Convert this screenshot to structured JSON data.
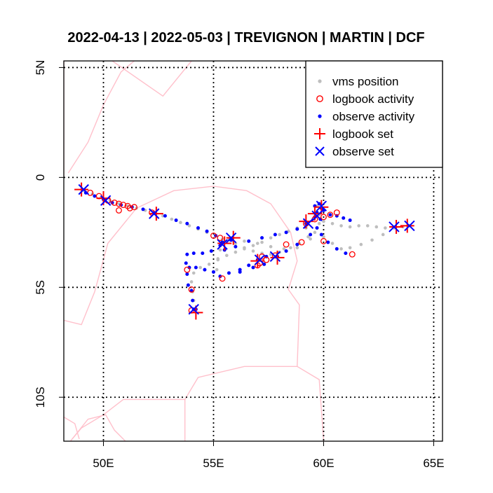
{
  "chart_data": {
    "type": "scatter",
    "title": "2022-04-13 | 2022-05-03 | TREVIGNON | MARTIN | DCF",
    "xlabel": "",
    "ylabel": "",
    "xlim": [
      48.2,
      65.4
    ],
    "ylim": [
      -12.0,
      5.3
    ],
    "grid": true,
    "legend_position": "top-right",
    "x_ticks": [
      {
        "value": 50,
        "label": "50E"
      },
      {
        "value": 55,
        "label": "55E"
      },
      {
        "value": 60,
        "label": "60E"
      },
      {
        "value": 65,
        "label": "65E"
      }
    ],
    "y_ticks": [
      {
        "value": 5,
        "label": "5N"
      },
      {
        "value": 0,
        "label": "0"
      },
      {
        "value": -5,
        "label": "5S"
      },
      {
        "value": -10,
        "label": "10S"
      }
    ],
    "colors": {
      "vms": "#bebebe",
      "logbook": "#ff0000",
      "observe": "#0000ff",
      "land": "#ffc0cb"
    },
    "legend": [
      {
        "key": "vms",
        "label": "vms position"
      },
      {
        "key": "logbook_activity",
        "label": "logbook activity"
      },
      {
        "key": "observe_activity",
        "label": "observe activity"
      },
      {
        "key": "logbook_set",
        "label": "logbook set"
      },
      {
        "key": "observe_set",
        "label": "observe set"
      }
    ],
    "land_outlines": [
      [
        [
          48.2,
          0.0
        ],
        [
          48.2,
          5.3
        ]
      ],
      [
        [
          48.4,
          0.2
        ],
        [
          49.3,
          1.6
        ],
        [
          50.0,
          3.3
        ],
        [
          50.8,
          4.8
        ],
        [
          51.4,
          5.3
        ]
      ],
      [
        [
          50.4,
          5.3
        ],
        [
          52.7,
          3.7
        ],
        [
          54.0,
          5.3
        ]
      ],
      [
        [
          48.2,
          -6.5
        ],
        [
          49.0,
          -6.7
        ],
        [
          49.6,
          -5.2
        ],
        [
          50.2,
          -3.0
        ],
        [
          51.5,
          -1.4
        ],
        [
          53.2,
          -0.6
        ],
        [
          55.0,
          -0.4
        ],
        [
          56.5,
          -0.6
        ],
        [
          57.6,
          -1.2
        ],
        [
          58.5,
          -2.5
        ],
        [
          58.8,
          -3.8
        ],
        [
          58.4,
          -5.1
        ],
        [
          58.9,
          -5.8
        ],
        [
          58.8,
          -8.6
        ],
        [
          56.4,
          -8.6
        ],
        [
          54.3,
          -9.1
        ],
        [
          53.7,
          -10.1
        ],
        [
          53.7,
          -12.0
        ]
      ],
      [
        [
          53.7,
          -10.1
        ],
        [
          50.9,
          -10.1
        ],
        [
          50.0,
          -10.8
        ],
        [
          49.0,
          -11.4
        ],
        [
          48.5,
          -12.0
        ]
      ],
      [
        [
          48.5,
          -12.0
        ],
        [
          49.3,
          -11.0
        ],
        [
          50.1,
          -10.8
        ],
        [
          50.5,
          -11.5
        ],
        [
          51.0,
          -12.0
        ]
      ],
      [
        [
          58.8,
          -8.6
        ],
        [
          59.8,
          -9.2
        ],
        [
          60.0,
          -12.0
        ]
      ],
      [
        [
          48.2,
          -10.9
        ],
        [
          48.7,
          -11.2
        ],
        [
          48.9,
          -11.9
        ]
      ]
    ],
    "vms_track": [
      [
        49.1,
        -0.6
      ],
      [
        49.5,
        -0.75
      ],
      [
        49.9,
        -0.9
      ],
      [
        50.3,
        -1.05
      ],
      [
        50.7,
        -1.2
      ],
      [
        51.1,
        -1.3
      ],
      [
        51.5,
        -1.4
      ],
      [
        51.9,
        -1.5
      ],
      [
        52.3,
        -1.6
      ],
      [
        52.7,
        -1.75
      ],
      [
        53.1,
        -1.9
      ],
      [
        53.5,
        -2.05
      ],
      [
        53.9,
        -2.2
      ],
      [
        54.3,
        -2.35
      ],
      [
        54.7,
        -2.5
      ],
      [
        55.1,
        -2.65
      ],
      [
        55.4,
        -2.8
      ],
      [
        55.7,
        -2.85
      ],
      [
        56.0,
        -3.0
      ],
      [
        56.4,
        -3.2
      ],
      [
        56.8,
        -3.35
      ],
      [
        57.2,
        -3.45
      ],
      [
        57.6,
        -3.5
      ],
      [
        58.0,
        -3.4
      ],
      [
        58.5,
        -3.2
      ],
      [
        58.9,
        -3.0
      ],
      [
        59.3,
        -2.7
      ],
      [
        59.7,
        -2.3
      ],
      [
        60.0,
        -2.0
      ],
      [
        60.4,
        -2.1
      ],
      [
        60.8,
        -2.2
      ],
      [
        61.2,
        -2.25
      ],
      [
        61.6,
        -2.2
      ],
      [
        62.0,
        -2.2
      ],
      [
        62.4,
        -2.25
      ],
      [
        62.8,
        -2.3
      ],
      [
        63.2,
        -2.3
      ],
      [
        63.6,
        -2.25
      ],
      [
        63.9,
        -2.2
      ],
      [
        63.2,
        -2.3
      ],
      [
        62.7,
        -2.6
      ],
      [
        62.2,
        -2.85
      ],
      [
        61.7,
        -3.05
      ],
      [
        61.2,
        -3.2
      ],
      [
        60.8,
        -3.25
      ],
      [
        60.4,
        -3.0
      ],
      [
        60.0,
        -2.7
      ],
      [
        59.6,
        -2.5
      ],
      [
        59.2,
        -2.3
      ],
      [
        58.8,
        -2.3
      ],
      [
        58.4,
        -2.45
      ],
      [
        58.0,
        -2.6
      ],
      [
        57.6,
        -2.75
      ],
      [
        57.2,
        -2.95
      ],
      [
        56.8,
        -3.1
      ],
      [
        56.4,
        -3.25
      ],
      [
        56.0,
        -3.4
      ],
      [
        55.6,
        -3.55
      ],
      [
        55.2,
        -3.75
      ],
      [
        54.8,
        -3.95
      ],
      [
        54.4,
        -4.1
      ],
      [
        54.1,
        -4.35
      ],
      [
        54.0,
        -4.75
      ],
      [
        54.05,
        -5.2
      ],
      [
        54.1,
        -5.6
      ],
      [
        54.2,
        -6.0
      ],
      [
        55.8,
        -2.85
      ],
      [
        56.4,
        -2.9
      ],
      [
        57.0,
        -3.0
      ],
      [
        57.6,
        -3.15
      ],
      [
        58.2,
        -3.25
      ],
      [
        58.8,
        -3.2
      ],
      [
        59.4,
        -2.8
      ],
      [
        59.8,
        -2.1
      ],
      [
        59.8,
        -1.7
      ],
      [
        59.7,
        -1.3
      ],
      [
        55.3,
        -3.3
      ],
      [
        55.2,
        -3.7
      ],
      [
        55.15,
        -4.2
      ],
      [
        55.3,
        -4.5
      ]
    ],
    "observe_activity": [
      [
        49.2,
        -0.7
      ],
      [
        49.6,
        -0.85
      ],
      [
        50.0,
        -1.0
      ],
      [
        50.4,
        -1.15
      ],
      [
        50.8,
        -1.25
      ],
      [
        51.3,
        -1.35
      ],
      [
        51.8,
        -1.45
      ],
      [
        52.3,
        -1.6
      ],
      [
        52.8,
        -1.75
      ],
      [
        53.3,
        -1.95
      ],
      [
        53.8,
        -2.1
      ],
      [
        54.3,
        -2.3
      ],
      [
        54.7,
        -2.45
      ],
      [
        55.1,
        -2.65
      ],
      [
        55.4,
        -2.95
      ],
      [
        55.8,
        -2.85
      ],
      [
        55.3,
        -3.1
      ],
      [
        54.9,
        -3.35
      ],
      [
        54.5,
        -3.45
      ],
      [
        54.1,
        -3.45
      ],
      [
        53.8,
        -3.5
      ],
      [
        53.75,
        -3.9
      ],
      [
        53.8,
        -4.4
      ],
      [
        53.85,
        -4.9
      ],
      [
        54.0,
        -5.15
      ],
      [
        54.05,
        -5.6
      ],
      [
        54.1,
        -6.0
      ],
      [
        54.2,
        -6.0
      ],
      [
        55.5,
        -3.3
      ],
      [
        56.0,
        -3.15
      ],
      [
        56.6,
        -2.9
      ],
      [
        57.2,
        -2.75
      ],
      [
        57.8,
        -2.6
      ],
      [
        58.3,
        -2.5
      ],
      [
        58.8,
        -2.35
      ],
      [
        59.2,
        -2.1
      ],
      [
        59.6,
        -1.8
      ],
      [
        59.9,
        -1.4
      ],
      [
        59.85,
        -1.9
      ],
      [
        59.7,
        -1.6
      ],
      [
        59.6,
        -1.3
      ],
      [
        59.8,
        -1.2
      ],
      [
        60.0,
        -1.5
      ],
      [
        60.3,
        -1.7
      ],
      [
        60.6,
        -1.75
      ],
      [
        60.9,
        -1.85
      ],
      [
        61.2,
        -1.95
      ],
      [
        56.2,
        -4.3
      ],
      [
        56.6,
        -4.0
      ],
      [
        57.0,
        -3.75
      ],
      [
        57.4,
        -3.6
      ],
      [
        57.9,
        -3.6
      ],
      [
        58.3,
        -3.35
      ],
      [
        58.8,
        -3.05
      ],
      [
        59.4,
        -2.6
      ],
      [
        59.7,
        -2.3
      ],
      [
        59.9,
        -2.6
      ],
      [
        60.2,
        -2.95
      ],
      [
        60.6,
        -3.25
      ],
      [
        61.0,
        -3.45
      ],
      [
        55.3,
        -4.5
      ],
      [
        55.7,
        -4.35
      ],
      [
        56.2,
        -4.2
      ],
      [
        56.8,
        -4.1
      ],
      [
        57.3,
        -3.95
      ],
      [
        55.0,
        -4.3
      ],
      [
        54.6,
        -4.2
      ],
      [
        54.2,
        -4.1
      ],
      [
        53.9,
        -4.1
      ]
    ],
    "logbook_activity": [
      [
        49.4,
        -0.7
      ],
      [
        49.8,
        -0.85
      ],
      [
        50.2,
        -1.05
      ],
      [
        50.5,
        -1.15
      ],
      [
        50.7,
        -1.2
      ],
      [
        50.9,
        -1.25
      ],
      [
        51.1,
        -1.3
      ],
      [
        51.4,
        -1.35
      ],
      [
        50.7,
        -1.5
      ],
      [
        51.2,
        -1.4
      ],
      [
        52.2,
        -1.6
      ],
      [
        55.0,
        -2.65
      ],
      [
        55.3,
        -2.75
      ],
      [
        53.8,
        -4.2
      ],
      [
        54.0,
        -5.1
      ],
      [
        54.0,
        -6.05
      ],
      [
        55.4,
        -4.6
      ],
      [
        57.2,
        -3.6
      ],
      [
        57.4,
        -3.75
      ],
      [
        57.1,
        -3.9
      ],
      [
        57.0,
        -4.0
      ],
      [
        57.8,
        -3.55
      ],
      [
        58.3,
        -3.05
      ],
      [
        59.0,
        -2.95
      ],
      [
        59.2,
        -2.1
      ],
      [
        59.6,
        -1.9
      ],
      [
        60.0,
        -1.8
      ],
      [
        60.3,
        -1.7
      ],
      [
        60.6,
        -1.6
      ],
      [
        60.0,
        -2.9
      ],
      [
        61.3,
        -3.5
      ]
    ],
    "logbook_set": [
      [
        49.0,
        -0.55
      ],
      [
        50.0,
        -0.95
      ],
      [
        52.4,
        -1.65
      ],
      [
        55.5,
        -3.0
      ],
      [
        55.9,
        -2.75
      ],
      [
        57.0,
        -3.8
      ],
      [
        57.9,
        -3.65
      ],
      [
        54.2,
        -6.15
      ],
      [
        59.2,
        -2.0
      ],
      [
        59.6,
        -1.65
      ],
      [
        59.9,
        -1.35
      ],
      [
        63.3,
        -2.25
      ],
      [
        63.8,
        -2.2
      ]
    ],
    "observe_set": [
      [
        49.1,
        -0.55
      ],
      [
        50.1,
        -1.05
      ],
      [
        52.3,
        -1.65
      ],
      [
        55.4,
        -3.05
      ],
      [
        55.8,
        -2.75
      ],
      [
        57.1,
        -3.75
      ],
      [
        57.8,
        -3.6
      ],
      [
        54.1,
        -6.0
      ],
      [
        59.3,
        -2.1
      ],
      [
        59.7,
        -1.75
      ],
      [
        59.9,
        -1.3
      ],
      [
        63.2,
        -2.25
      ],
      [
        63.9,
        -2.2
      ]
    ]
  }
}
